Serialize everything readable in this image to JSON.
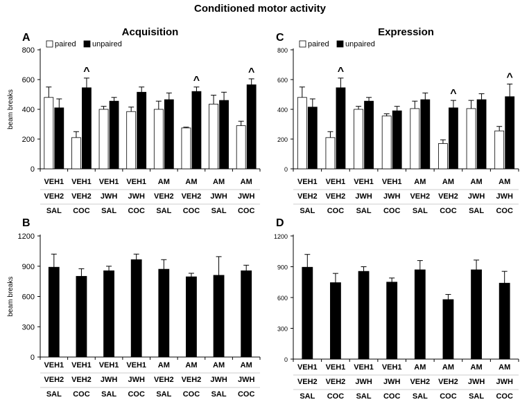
{
  "figure_title": "Conditioned motor activity",
  "colors": {
    "paired": "#ffffff",
    "unpaired": "#000000",
    "axis": "#000000",
    "cell_border": "#9a9a9a"
  },
  "chart_data": [
    {
      "type": "bar",
      "panel_letter": "A",
      "title": "Acquisition",
      "ylabel": "beam breaks",
      "ylim": [
        0,
        800
      ],
      "yticks": [
        0,
        200,
        400,
        600,
        800
      ],
      "categories": [
        [
          "VEH1",
          "VEH2",
          "SAL"
        ],
        [
          "VEH1",
          "VEH2",
          "COC"
        ],
        [
          "VEH1",
          "JWH",
          "SAL"
        ],
        [
          "VEH1",
          "JWH",
          "COC"
        ],
        [
          "AM",
          "VEH2",
          "SAL"
        ],
        [
          "AM",
          "VEH2",
          "COC"
        ],
        [
          "AM",
          "JWH",
          "SAL"
        ],
        [
          "AM",
          "JWH",
          "COC"
        ]
      ],
      "legend": {
        "position": "top-left",
        "entries": [
          "paired",
          "unpaired"
        ]
      },
      "series": [
        {
          "name": "paired",
          "values": [
            480,
            210,
            400,
            385,
            400,
            275,
            435,
            290
          ],
          "errors": [
            70,
            40,
            20,
            30,
            55,
            5,
            60,
            30
          ]
        },
        {
          "name": "unpaired",
          "values": [
            410,
            545,
            455,
            515,
            465,
            520,
            460,
            565
          ],
          "errors": [
            60,
            65,
            25,
            35,
            45,
            30,
            55,
            40
          ]
        }
      ],
      "markers": [
        {
          "category_index": 1,
          "series": "unpaired",
          "symbol": "^"
        },
        {
          "category_index": 5,
          "series": "unpaired",
          "symbol": "^"
        },
        {
          "category_index": 7,
          "series": "unpaired",
          "symbol": "^"
        }
      ]
    },
    {
      "type": "bar",
      "panel_letter": "C",
      "title": "Expression",
      "ylabel": "",
      "ylim": [
        0,
        800
      ],
      "yticks": [
        0,
        200,
        400,
        600,
        800
      ],
      "categories": [
        [
          "VEH1",
          "VEH2",
          "SAL"
        ],
        [
          "VEH1",
          "VEH2",
          "COC"
        ],
        [
          "VEH1",
          "JWH",
          "SAL"
        ],
        [
          "VEH1",
          "JWH",
          "COC"
        ],
        [
          "AM",
          "VEH2",
          "SAL"
        ],
        [
          "AM",
          "VEH2",
          "COC"
        ],
        [
          "AM",
          "JWH",
          "SAL"
        ],
        [
          "AM",
          "JWH",
          "COC"
        ]
      ],
      "legend": {
        "position": "top-left",
        "entries": [
          "paired",
          "unpaired"
        ]
      },
      "series": [
        {
          "name": "paired",
          "values": [
            480,
            210,
            400,
            355,
            405,
            170,
            405,
            255
          ],
          "errors": [
            70,
            40,
            20,
            15,
            50,
            25,
            55,
            30
          ]
        },
        {
          "name": "unpaired",
          "values": [
            415,
            545,
            455,
            390,
            465,
            410,
            465,
            485
          ],
          "errors": [
            55,
            65,
            25,
            30,
            45,
            50,
            40,
            85
          ]
        }
      ],
      "markers": [
        {
          "category_index": 1,
          "series": "unpaired",
          "symbol": "^"
        },
        {
          "category_index": 5,
          "series": "unpaired",
          "symbol": "^"
        },
        {
          "category_index": 7,
          "series": "unpaired",
          "symbol": "^"
        }
      ]
    },
    {
      "type": "bar",
      "panel_letter": "B",
      "title": "",
      "ylabel": "beam breaks",
      "ylim": [
        0,
        1200
      ],
      "yticks": [
        0,
        300,
        600,
        900,
        1200
      ],
      "categories": [
        [
          "VEH1",
          "VEH2",
          "SAL"
        ],
        [
          "VEH1",
          "VEH2",
          "COC"
        ],
        [
          "VEH1",
          "JWH",
          "SAL"
        ],
        [
          "VEH1",
          "JWH",
          "COC"
        ],
        [
          "AM",
          "VEH2",
          "SAL"
        ],
        [
          "AM",
          "VEH2",
          "COC"
        ],
        [
          "AM",
          "JWH",
          "SAL"
        ],
        [
          "AM",
          "JWH",
          "COC"
        ]
      ],
      "series": [
        {
          "values": [
            890,
            800,
            855,
            965,
            870,
            795,
            810,
            855
          ],
          "errors": [
            130,
            75,
            45,
            55,
            95,
            35,
            185,
            55
          ]
        }
      ]
    },
    {
      "type": "bar",
      "panel_letter": "D",
      "title": "",
      "ylabel": "",
      "ylim": [
        0,
        1200
      ],
      "yticks": [
        0,
        300,
        600,
        900,
        1200
      ],
      "categories": [
        [
          "VEH1",
          "VEH2",
          "SAL"
        ],
        [
          "VEH1",
          "VEH2",
          "COC"
        ],
        [
          "VEH1",
          "JWH",
          "SAL"
        ],
        [
          "VEH1",
          "JWH",
          "COC"
        ],
        [
          "AM",
          "VEH2",
          "SAL"
        ],
        [
          "AM",
          "VEH2",
          "COC"
        ],
        [
          "AM",
          "JWH",
          "SAL"
        ],
        [
          "AM",
          "JWH",
          "COC"
        ]
      ],
      "series": [
        {
          "values": [
            895,
            745,
            855,
            750,
            870,
            580,
            870,
            740
          ],
          "errors": [
            125,
            90,
            45,
            40,
            90,
            50,
            95,
            115
          ]
        }
      ]
    }
  ]
}
